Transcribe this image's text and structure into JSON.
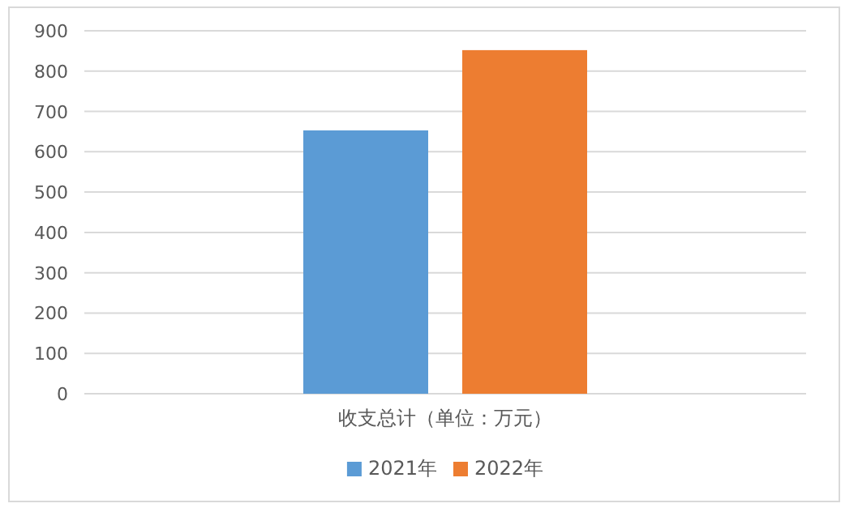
{
  "chart_data": {
    "type": "bar",
    "categories": [
      "收支总计（单位：万元）"
    ],
    "series": [
      {
        "name": "2021年",
        "color": "#5b9bd5",
        "values": [
          653
        ]
      },
      {
        "name": "2022年",
        "color": "#ed7d31",
        "values": [
          852
        ]
      }
    ],
    "ylim": [
      0,
      900
    ],
    "yticks": [
      0,
      100,
      200,
      300,
      400,
      500,
      600,
      700,
      800,
      900
    ],
    "grid": "y",
    "legend": "bottom"
  }
}
